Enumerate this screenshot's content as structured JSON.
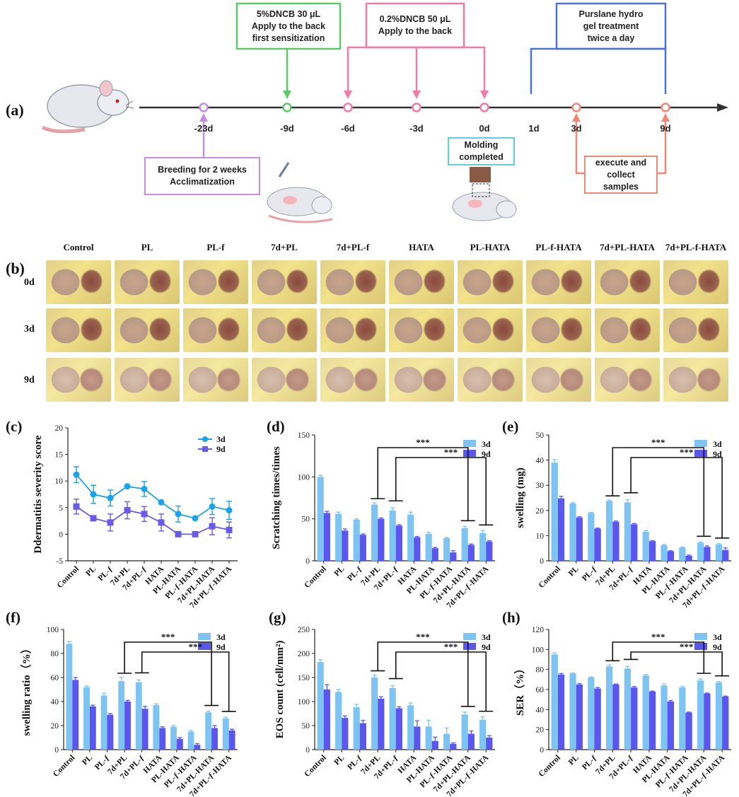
{
  "panel_a": {
    "letter": "(a)",
    "timepoints": [
      {
        "label": "-23d",
        "color": "#c58ee0",
        "mark": true
      },
      {
        "label": "-9d",
        "color": "#5fc86a",
        "mark": true
      },
      {
        "label": "-6d",
        "color": "#f07aa8",
        "mark": true
      },
      {
        "label": "-3d",
        "color": "#f07aa8",
        "mark": true
      },
      {
        "label": "0d",
        "color": "#f07aa8",
        "mark": true
      },
      {
        "label": "1d",
        "color": "#222222",
        "mark": false
      },
      {
        "label": "3d",
        "color": "#f08878",
        "mark": true
      },
      {
        "label": "9d",
        "color": "#f08878",
        "mark": true
      }
    ],
    "boxes": {
      "sensitization": [
        "5%DNCB 30 μL",
        "Apply to the back",
        "first sensitization"
      ],
      "challenge": [
        "0.2%DNCB 50 μL",
        "Apply to the back"
      ],
      "treatment": [
        "Purslane hydro",
        "gel treatment",
        "twice a day"
      ],
      "breeding": [
        "Breeding for 2 weeks",
        "Acclimatization"
      ],
      "molding": [
        "Molding",
        "completed"
      ],
      "execute": [
        "execute and",
        "collect",
        "samples"
      ]
    }
  },
  "panel_b": {
    "letter": "(b)",
    "columns": [
      "Control",
      "PL",
      "PL-f",
      "7d+PL",
      "7d+PL-f",
      "HATA",
      "PL-HATA",
      "PL-f-HATA",
      "7d+PL-HATA",
      "7d+PL-f-HATA"
    ],
    "rows": [
      "0d",
      "3d",
      "9d"
    ]
  },
  "chart_data": [
    {
      "panel": "(c)",
      "type": "line",
      "ylabel": "Ddermatitis severity score",
      "ylim": [
        -5,
        20
      ],
      "yticks": [
        -5,
        0,
        5,
        10,
        15,
        20
      ],
      "categories": [
        "Control",
        "PL",
        "PL-f",
        "7d+PL",
        "7d+PL-f",
        "HATA",
        "PL-HATA",
        "PL-f-HATA",
        "7d+PL-HATA",
        "7d+PL-f-HATA"
      ],
      "series": [
        {
          "name": "3d",
          "color": "#1aa3e8",
          "values": [
            11.2,
            7.5,
            6.8,
            9.0,
            8.5,
            6.0,
            3.8,
            3.0,
            5.2,
            4.5
          ],
          "errors": [
            1.5,
            1.7,
            1.5,
            0.2,
            1.4,
            0.2,
            1.5,
            0.2,
            1.5,
            1.7
          ]
        },
        {
          "name": "9d",
          "color": "#6a5ae8",
          "values": [
            5.2,
            3.0,
            2.2,
            4.5,
            3.8,
            2.2,
            0.0,
            0.0,
            1.5,
            0.8
          ],
          "errors": [
            1.4,
            0.2,
            1.6,
            1.6,
            1.4,
            1.6,
            0.2,
            0.2,
            1.6,
            1.5
          ]
        }
      ]
    },
    {
      "panel": "(d)",
      "type": "bar",
      "ylabel": "Scratching times/times",
      "ylim": [
        0,
        150
      ],
      "yticks": [
        0,
        50,
        100,
        150
      ],
      "categories": [
        "Control",
        "PL",
        "PL-f",
        "7d+PL",
        "7d+PL-f",
        "HATA",
        "PL-HATA",
        "PL-f-HATA",
        "7d+PL-HATA",
        "7d+PL-f-HATA"
      ],
      "series": [
        {
          "name": "3d",
          "color": "#7ec4f2",
          "values": [
            100,
            56,
            49,
            67,
            60,
            55,
            32,
            27,
            39,
            33
          ],
          "errors": [
            2,
            2,
            1,
            2,
            3,
            3,
            2,
            1,
            2,
            3
          ]
        },
        {
          "name": "9d",
          "color": "#5b56ee",
          "values": [
            57,
            36,
            31,
            50,
            42,
            28,
            15,
            10,
            19,
            23
          ],
          "errors": [
            2,
            2,
            1,
            1,
            1,
            1,
            1,
            2,
            1,
            1
          ]
        }
      ],
      "significance": [
        {
          "from": 3,
          "to": 8,
          "label": "***"
        },
        {
          "from": 4,
          "to": 9,
          "label": "***"
        }
      ]
    },
    {
      "panel": "(e)",
      "type": "bar",
      "ylabel": "swelling (mg)",
      "ylim": [
        0,
        50
      ],
      "yticks": [
        0,
        10,
        20,
        30,
        40,
        50
      ],
      "categories": [
        "Control",
        "PL",
        "PL-f",
        "7d+PL",
        "7d+PL-f",
        "HATA",
        "PL-HATA",
        "PL-f-HATA",
        "7d+PL-HATA",
        "7d+PL-f-HATA"
      ],
      "series": [
        {
          "name": "3d",
          "color": "#7ec4f2",
          "values": [
            39,
            22.8,
            19,
            23.8,
            23.2,
            11.5,
            6.2,
            5.3,
            7.2,
            6.5
          ],
          "errors": [
            1.2,
            0.3,
            0.2,
            0.3,
            1.0,
            0.5,
            0.3,
            0.2,
            0.3,
            0.3
          ]
        },
        {
          "name": "9d",
          "color": "#5b56ee",
          "values": [
            24.8,
            17.2,
            12.8,
            15.5,
            14.5,
            7.8,
            3.8,
            2.0,
            5.5,
            4.3
          ],
          "errors": [
            0.8,
            0.3,
            0.2,
            0.3,
            0.3,
            0.2,
            0.2,
            0.3,
            0.4,
            0.8
          ]
        }
      ],
      "significance": [
        {
          "from": 3,
          "to": 8,
          "label": "***"
        },
        {
          "from": 4,
          "to": 9,
          "label": "***"
        }
      ]
    },
    {
      "panel": "(f)",
      "type": "bar",
      "ylabel": "swelling ratio（%）",
      "ylim": [
        0,
        100
      ],
      "yticks": [
        0,
        20,
        40,
        60,
        80,
        100
      ],
      "categories": [
        "Control",
        "PL",
        "PL-f",
        "7d+PL",
        "7d+PL-f",
        "HATA",
        "PL-HATA",
        "PL-f-HATA",
        "7d+PL-HATA",
        "7d+PL-f-HATA"
      ],
      "series": [
        {
          "name": "3d",
          "color": "#7ec4f2",
          "values": [
            88,
            52,
            45,
            57,
            56,
            37,
            19,
            15,
            31,
            26
          ],
          "errors": [
            2,
            1,
            2,
            3,
            2,
            1,
            1,
            1,
            1,
            1
          ]
        },
        {
          "name": "9d",
          "color": "#5b56ee",
          "values": [
            58,
            36,
            29,
            40,
            34,
            18,
            9,
            4,
            18,
            16
          ],
          "errors": [
            2,
            1,
            1,
            1,
            2,
            1,
            1,
            1,
            2,
            1
          ]
        }
      ],
      "significance": [
        {
          "from": 3,
          "to": 8,
          "label": "***"
        },
        {
          "from": 4,
          "to": 9,
          "label": "***"
        }
      ]
    },
    {
      "panel": "(g)",
      "type": "bar",
      "ylabel": "EOS count (cell/mm²)",
      "ylim": [
        0,
        250
      ],
      "yticks": [
        0,
        50,
        100,
        150,
        200,
        250
      ],
      "categories": [
        "Control",
        "PL",
        "PL-f",
        "7d+PL",
        "7d+PL-f",
        "HATA",
        "PL-HATA",
        "PL-f-HATA",
        "7d+PL-HATA",
        "7d+PL-f-HATA"
      ],
      "series": [
        {
          "name": "3d",
          "color": "#7ec4f2",
          "values": [
            182,
            120,
            88,
            150,
            128,
            92,
            48,
            33,
            73,
            62
          ],
          "errors": [
            5,
            5,
            6,
            5,
            5,
            5,
            13,
            12,
            5,
            6
          ]
        },
        {
          "name": "9d",
          "color": "#5b56ee",
          "values": [
            125,
            66,
            55,
            106,
            86,
            48,
            18,
            12,
            33,
            25
          ],
          "errors": [
            10,
            4,
            6,
            4,
            3,
            12,
            8,
            2,
            6,
            4
          ]
        }
      ],
      "significance": [
        {
          "from": 3,
          "to": 8,
          "label": "***"
        },
        {
          "from": 4,
          "to": 9,
          "label": "***"
        }
      ]
    },
    {
      "panel": "(h)",
      "type": "bar",
      "ylabel": "SER（%）",
      "ylim": [
        0,
        120
      ],
      "yticks": [
        0,
        20,
        40,
        60,
        80,
        100,
        120
      ],
      "categories": [
        "Control",
        "PL",
        "PL-f",
        "7d+PL",
        "7d+PL-f",
        "HATA",
        "PL-HATA",
        "PL-f-HATA",
        "7d+PL-HATA",
        "7d+PL-f-HATA"
      ],
      "series": [
        {
          "name": "3d",
          "color": "#7ec4f2",
          "values": [
            95,
            76,
            72,
            83,
            81,
            74,
            64,
            62,
            69,
            67
          ],
          "errors": [
            1.5,
            0.5,
            0.5,
            1.5,
            2,
            1,
            1.5,
            1,
            1.5,
            1
          ]
        },
        {
          "name": "9d",
          "color": "#5b56ee",
          "values": [
            75,
            65,
            61,
            65,
            62,
            58,
            48,
            37,
            56,
            53
          ],
          "errors": [
            1,
            1,
            1,
            0.5,
            1,
            0.5,
            1,
            0.5,
            0.5,
            0.5
          ]
        }
      ],
      "significance": [
        {
          "from": 3,
          "to": 8,
          "label": "***"
        },
        {
          "from": 4,
          "to": 9,
          "label": "***"
        }
      ]
    }
  ]
}
